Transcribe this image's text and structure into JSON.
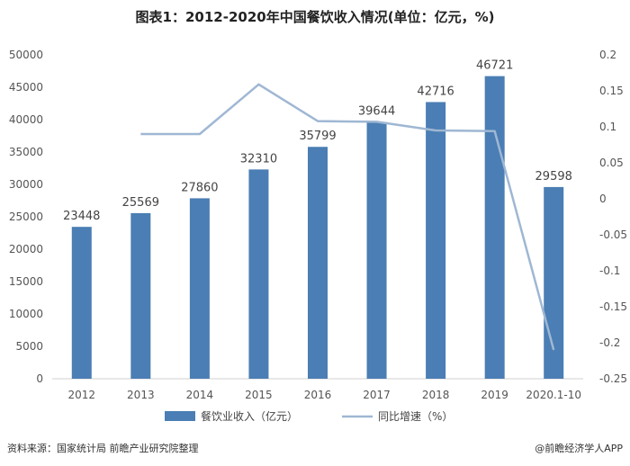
{
  "chart_data": {
    "type": "bar",
    "title": "图表1：2012-2020年中国餐饮收入情况(单位：亿元，%)",
    "categories": [
      "2012",
      "2013",
      "2014",
      "2015",
      "2016",
      "2017",
      "2018",
      "2019",
      "2020.1-10"
    ],
    "series": [
      {
        "name": "餐饮业收入（亿元）",
        "type": "bar",
        "axis": "left",
        "color": "#4a7eb4",
        "values": [
          23448,
          25569,
          27860,
          32310,
          35799,
          39644,
          42716,
          46721,
          29598
        ]
      },
      {
        "name": "同比增速（%）",
        "type": "line",
        "axis": "right",
        "color": "#9fb7d3",
        "values": [
          null,
          0.09,
          0.09,
          0.159,
          0.108,
          0.107,
          0.095,
          0.094,
          -0.21
        ]
      }
    ],
    "left_axis": {
      "min": 0,
      "max": 50000,
      "ticks": [
        "0",
        "5000",
        "10000",
        "15000",
        "20000",
        "25000",
        "30000",
        "35000",
        "40000",
        "45000",
        "50000"
      ]
    },
    "right_axis": {
      "min": -0.25,
      "max": 0.2,
      "ticks": [
        "-0.25",
        "-0.2",
        "-0.15",
        "-0.1",
        "-0.05",
        "0",
        "0.05",
        "0.1",
        "0.15",
        "0.2"
      ]
    },
    "legend_position": "bottom"
  },
  "footer": {
    "source": "资料来源：国家统计局 前瞻产业研究院整理",
    "brand": "@前瞻经济学人APP"
  }
}
